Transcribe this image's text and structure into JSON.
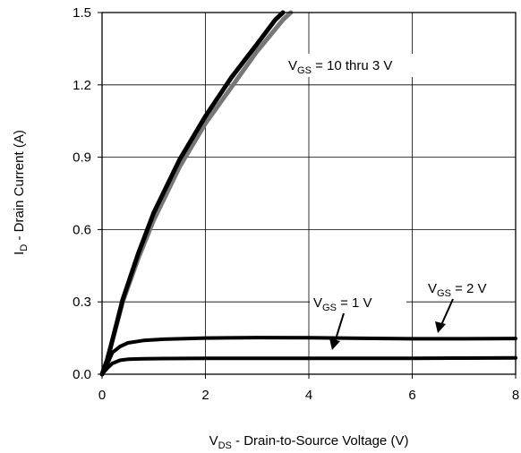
{
  "chart_data": {
    "type": "line",
    "title": "",
    "xlabel": {
      "main": "V",
      "sub": "DS",
      "rest": " - Drain-to-Source Voltage (V)"
    },
    "ylabel": {
      "main": "I",
      "sub": "D",
      "rest": " - Drain Current (A)"
    },
    "xlim": [
      0,
      8
    ],
    "ylim": [
      0,
      1.5
    ],
    "x_ticks": [
      "0",
      "2",
      "4",
      "6",
      "8"
    ],
    "y_ticks": [
      "0.0",
      "0.3",
      "0.6",
      "0.9",
      "1.2",
      "1.5"
    ],
    "grid": true,
    "series": [
      {
        "name": "VGS = 10 thru 3 V",
        "color": "#777777",
        "x": [
          0.0,
          0.1,
          0.2,
          0.4,
          0.7,
          1.0,
          1.5,
          2.0,
          2.5,
          3.0,
          3.5,
          3.65
        ],
        "y": [
          0.0,
          0.06,
          0.14,
          0.3,
          0.48,
          0.64,
          0.86,
          1.04,
          1.19,
          1.34,
          1.47,
          1.5
        ]
      },
      {
        "name": "VGS = 10 thru 3 V",
        "color": "#000000",
        "x": [
          0.0,
          0.1,
          0.2,
          0.4,
          0.7,
          1.0,
          1.5,
          2.0,
          2.5,
          3.0,
          3.35,
          3.5
        ],
        "y": [
          0.0,
          0.06,
          0.14,
          0.31,
          0.5,
          0.67,
          0.89,
          1.07,
          1.23,
          1.37,
          1.47,
          1.5
        ]
      },
      {
        "name": "VGS = 2 V",
        "color": "#000000",
        "x": [
          0.0,
          0.1,
          0.2,
          0.35,
          0.5,
          0.8,
          1.2,
          2.0,
          3.0,
          4.0,
          5.0,
          6.0,
          7.0,
          8.0
        ],
        "y": [
          0.0,
          0.04,
          0.09,
          0.115,
          0.13,
          0.14,
          0.145,
          0.15,
          0.152,
          0.151,
          0.149,
          0.147,
          0.147,
          0.148
        ]
      },
      {
        "name": "VGS = 1 V",
        "color": "#000000",
        "x": [
          0.0,
          0.1,
          0.2,
          0.35,
          0.5,
          0.8,
          1.2,
          2.0,
          3.0,
          4.0,
          5.0,
          6.0,
          7.0,
          8.0
        ],
        "y": [
          0.0,
          0.025,
          0.045,
          0.058,
          0.062,
          0.064,
          0.065,
          0.066,
          0.066,
          0.066,
          0.066,
          0.066,
          0.067,
          0.068
        ]
      }
    ],
    "annotations": [
      {
        "main": "V",
        "sub": "GS",
        "rest": " = 10 thru 3 V"
      },
      {
        "main": "V",
        "sub": "GS",
        "rest": " = 2 V"
      },
      {
        "main": "V",
        "sub": "GS",
        "rest": " = 1 V"
      }
    ]
  }
}
